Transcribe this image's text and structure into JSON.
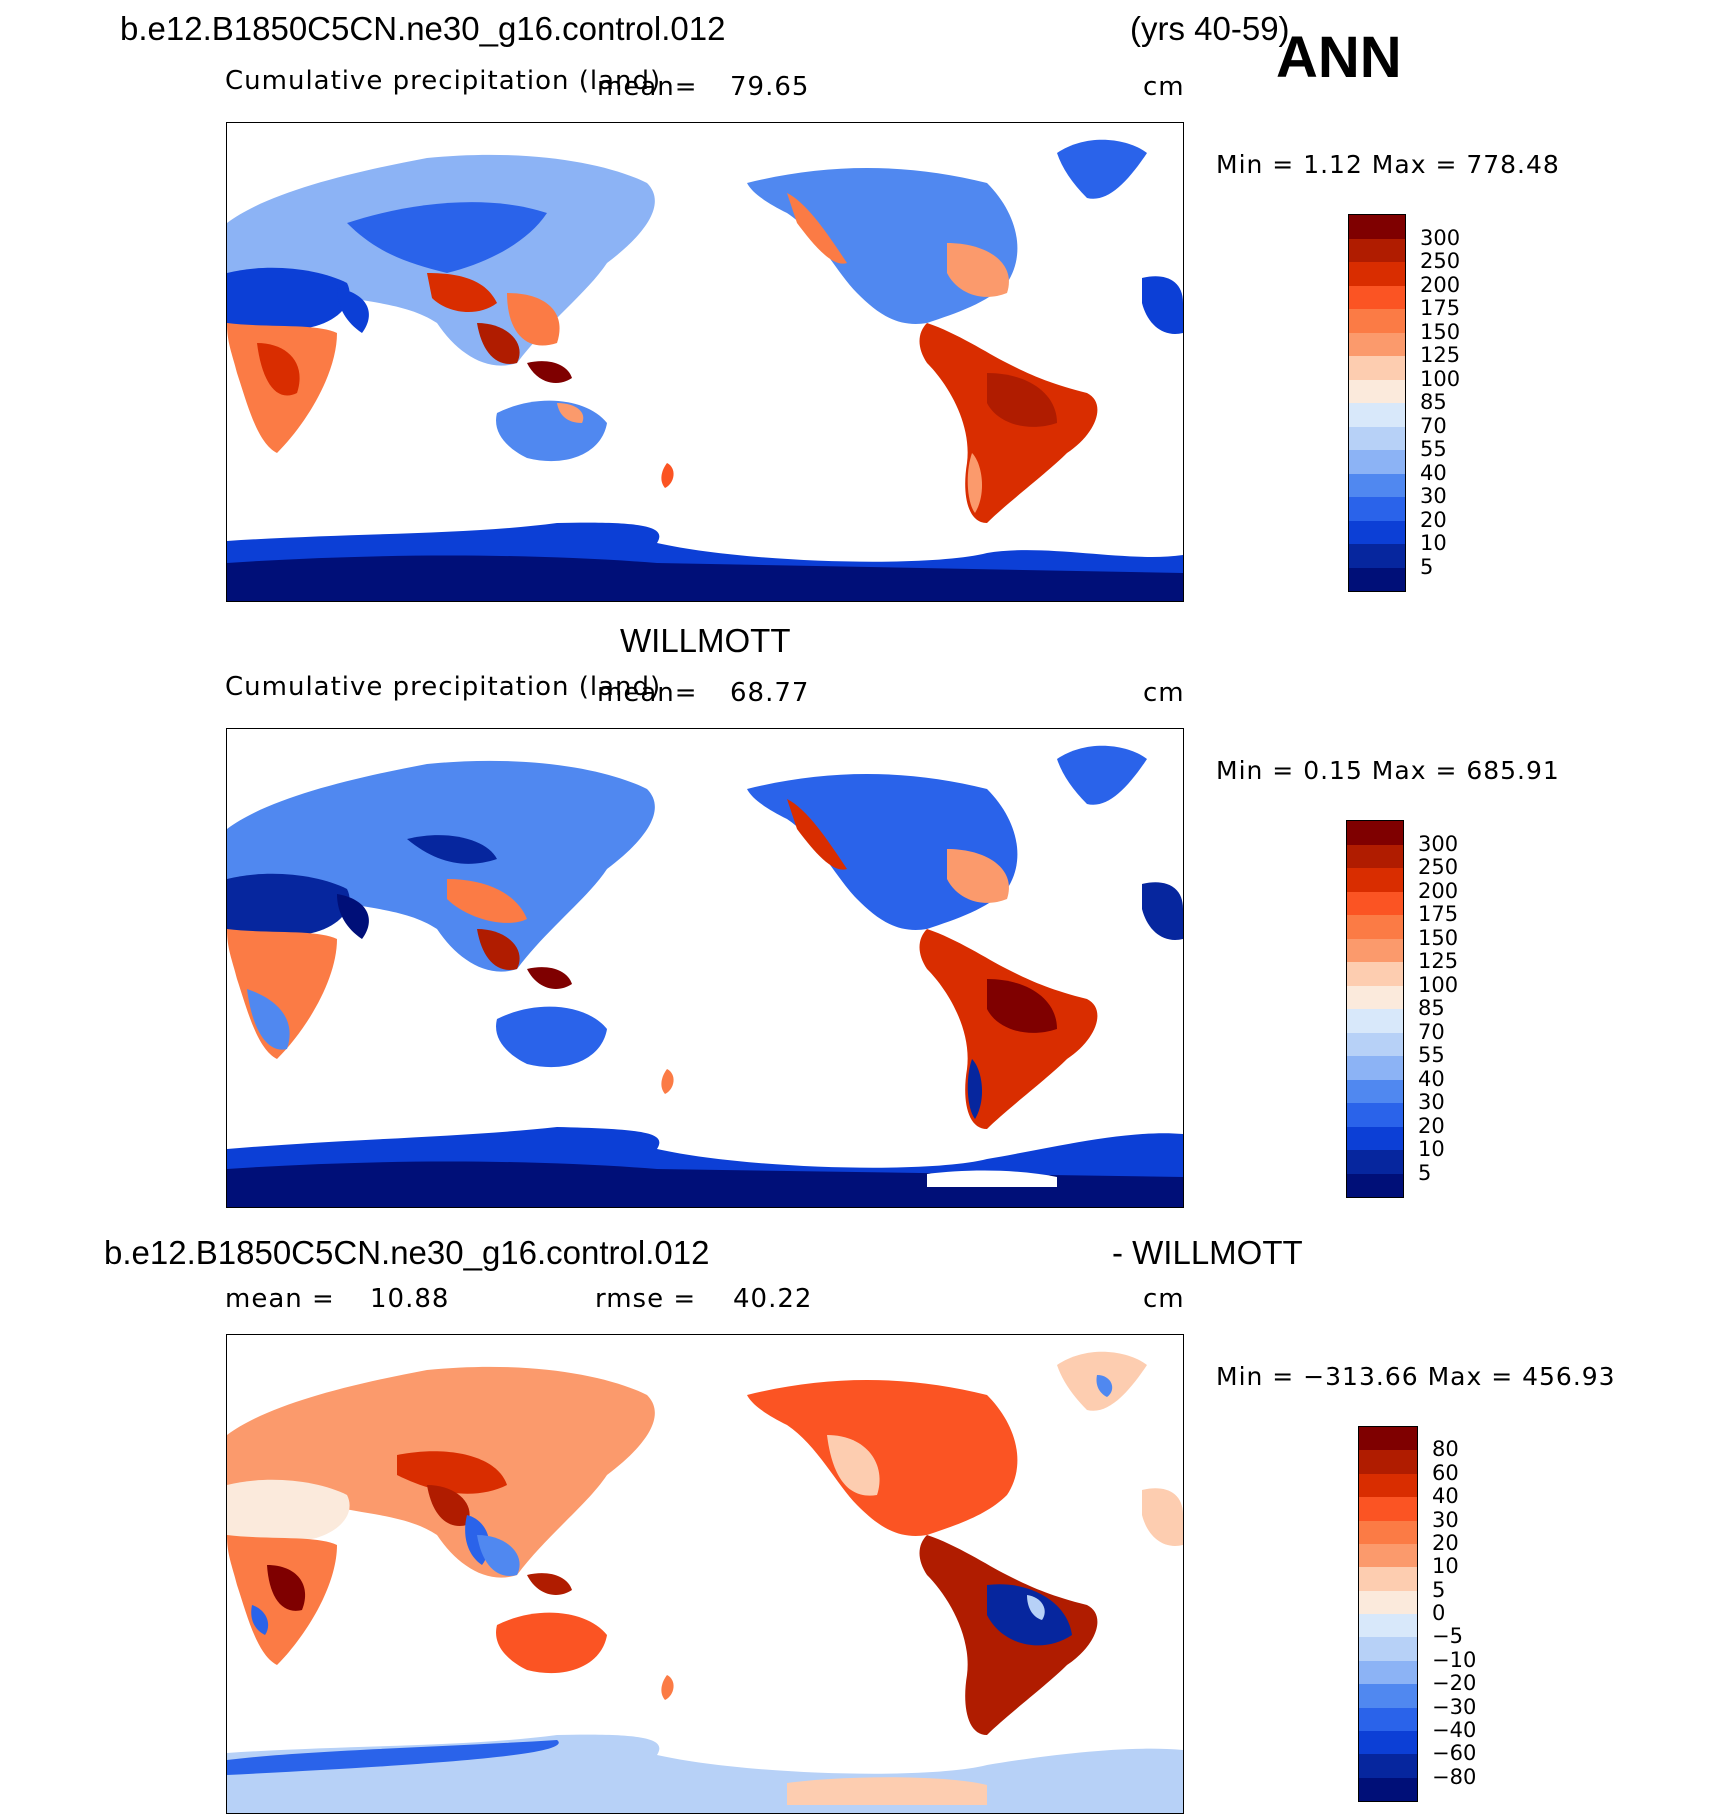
{
  "header": {
    "case_name": "b.e12.B1850C5CN.ne30_g16.control.012",
    "years": "(yrs 40-59)",
    "season": "ANN"
  },
  "panels": [
    {
      "id": "model",
      "title": "",
      "variable": "Cumulative precipitation (land)",
      "mean_label": "mean=",
      "mean_value": "79.65",
      "units": "cm",
      "min_max": "Min =    1.12 Max = 778.48",
      "colorbar_labels": [
        "300",
        "250",
        "200",
        "175",
        "150",
        "125",
        "100",
        "85",
        "70",
        "55",
        "40",
        "30",
        "20",
        "10",
        "5"
      ]
    },
    {
      "id": "obs",
      "title": "WILLMOTT",
      "variable": "Cumulative precipitation (land)",
      "mean_label": "mean=",
      "mean_value": "68.77",
      "units": "cm",
      "min_max": "Min =    0.15 Max = 685.91",
      "colorbar_labels": [
        "300",
        "250",
        "200",
        "175",
        "150",
        "125",
        "100",
        "85",
        "70",
        "55",
        "40",
        "30",
        "20",
        "10",
        "5"
      ]
    },
    {
      "id": "diff",
      "title_left": "b.e12.B1850C5CN.ne30_g16.control.012",
      "title_right": "- WILLMOTT",
      "mean_label": "mean =",
      "mean_value": "10.88",
      "rmse_label": "rmse =",
      "rmse_value": "40.22",
      "units": "cm",
      "min_max": "Min = −313.66 Max = 456.93",
      "colorbar_labels": [
        "80",
        "60",
        "40",
        "30",
        "20",
        "10",
        "5",
        "0",
        "−5",
        "−10",
        "−20",
        "−30",
        "−40",
        "−60",
        "−80"
      ]
    }
  ],
  "colors": {
    "colorbar": [
      "#7f0000",
      "#b01c00",
      "#d92d00",
      "#fb5423",
      "#fb7b45",
      "#fb9a6c",
      "#fdcdb0",
      "#fbeadc",
      "#d8e8fa",
      "#b7d1f7",
      "#8cb3f5",
      "#5088f0",
      "#2a63ea",
      "#0c3fd6",
      "#06269e",
      "#000f78"
    ]
  }
}
